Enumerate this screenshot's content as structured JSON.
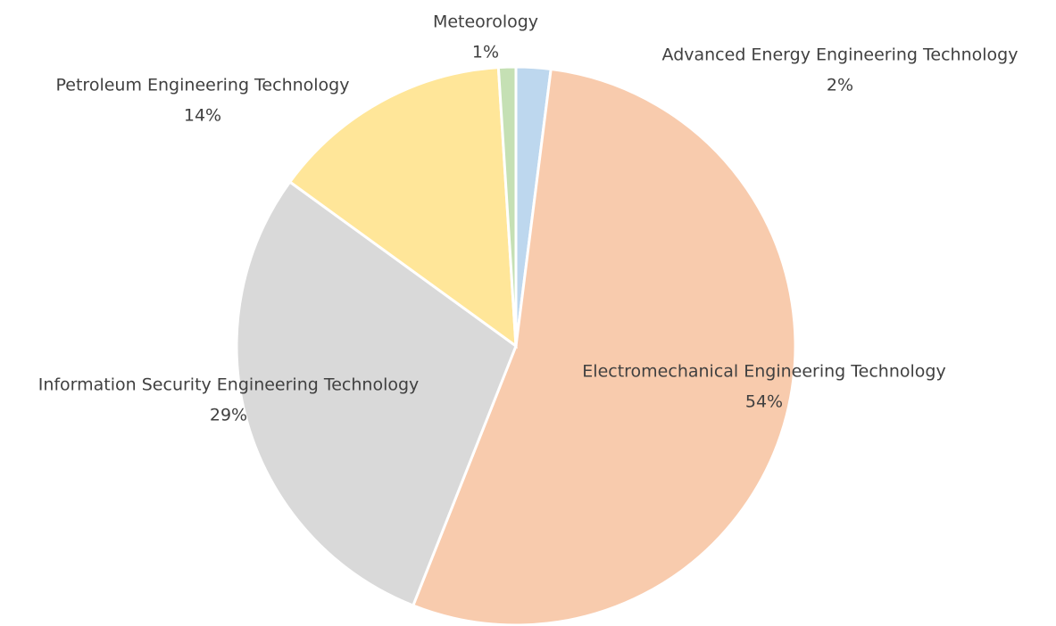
{
  "chart_data": {
    "type": "pie",
    "categories": [
      "Advanced Energy Engineering Technology",
      "Electromechanical Engineering Technology",
      "Information Security Engineering Technology",
      "Petroleum Engineering Technology",
      "Meteorology"
    ],
    "values": [
      2,
      54,
      29,
      14,
      1
    ],
    "value_labels": [
      "2%",
      "54%",
      "29%",
      "14%",
      "1%"
    ],
    "colors": [
      "#bdd7ee",
      "#f8cbad",
      "#d9d9d9",
      "#ffe699",
      "#c5e0b4"
    ]
  }
}
